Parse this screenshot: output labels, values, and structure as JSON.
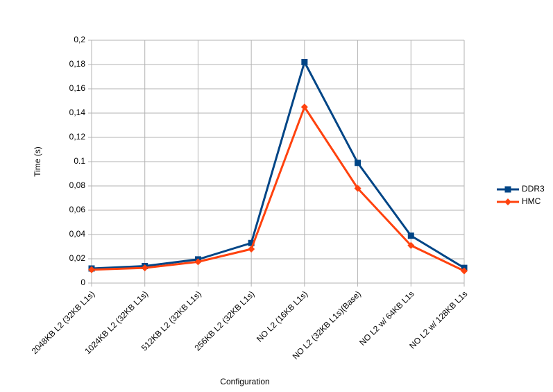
{
  "chart_data": {
    "type": "line",
    "x_label": "Configuration",
    "y_label": "Time (s)",
    "categories": [
      "2048KB L2 (32KB L1s)",
      "1024KB L2 (32KB L1s)",
      "512KB L2 (32KB L1s)",
      "256KB L2 (32KB L1s)",
      "NO L2 (16KB L1s)",
      "NO L2 (32KB L1s)(Base)",
      "NO L2 w/ 64KB L1s",
      "NO L2 w/ 128KB L1s"
    ],
    "series": [
      {
        "name": "DDR3",
        "color": "#004586",
        "marker": "square",
        "values": [
          0.012,
          0.014,
          0.0195,
          0.033,
          0.182,
          0.099,
          0.039,
          0.0125
        ]
      },
      {
        "name": "HMC",
        "color": "#ff420e",
        "marker": "diamond",
        "values": [
          0.011,
          0.0125,
          0.0175,
          0.028,
          0.145,
          0.078,
          0.031,
          0.01
        ]
      }
    ],
    "ylim": [
      0,
      0.2
    ],
    "yticks": [
      0,
      {
        "value": 0.02,
        "label": "0,02"
      },
      {
        "value": 0.04,
        "label": "0,04"
      },
      {
        "value": 0.06,
        "label": "0,06"
      },
      {
        "value": 0.08,
        "label": "0,08"
      },
      0.1,
      {
        "value": 0.12,
        "label": "0,12"
      },
      {
        "value": 0.14,
        "label": "0,14"
      },
      {
        "value": 0.16,
        "label": "0,16"
      },
      {
        "value": 0.18,
        "label": "0,18"
      },
      {
        "value": 0.2,
        "label": "0,2"
      }
    ],
    "grid": true,
    "legend": "right"
  }
}
